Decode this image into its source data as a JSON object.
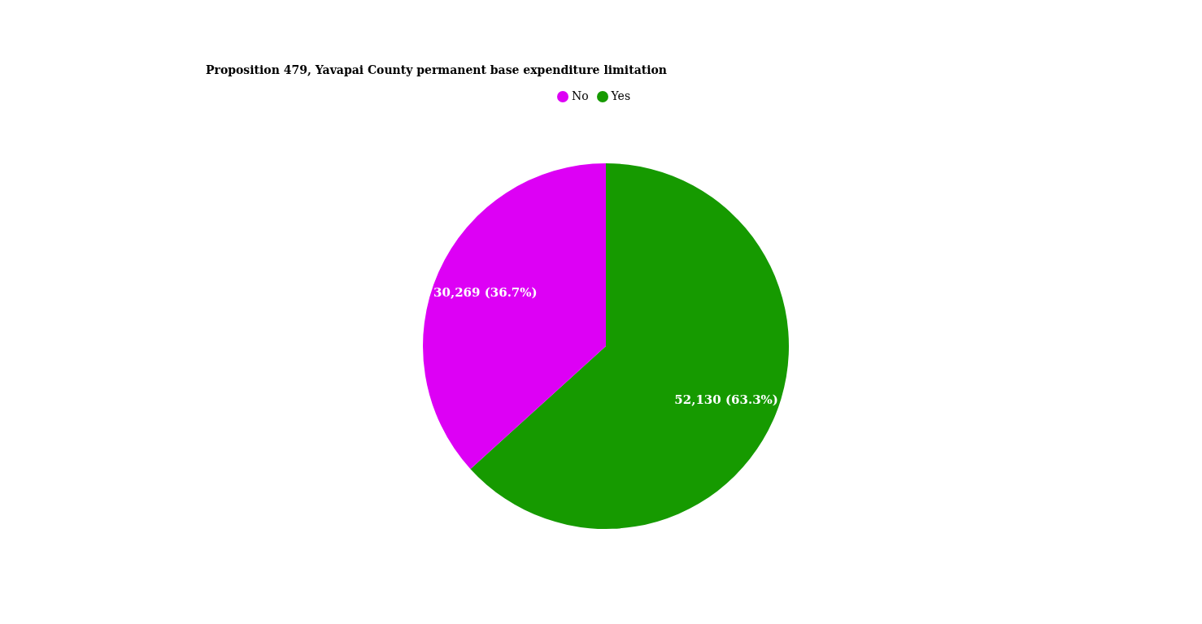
{
  "chart_data": {
    "type": "pie",
    "title": "Proposition 479, Yavapai County permanent base expenditure limitation",
    "categories": [
      "Yes",
      "No"
    ],
    "values": [
      52130,
      30269
    ],
    "colors": [
      "#169a00",
      "#dd00f5"
    ],
    "value_labels": [
      "52,130 (63.3%)",
      "30,269 (36.7%)"
    ],
    "legend": "top"
  }
}
